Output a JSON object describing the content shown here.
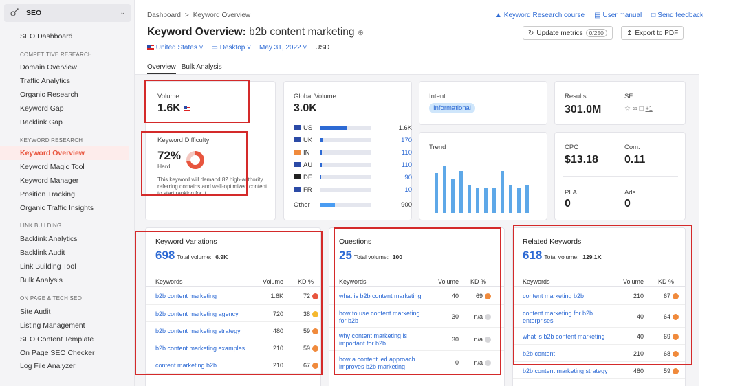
{
  "sidebar": {
    "header_label": "SEO",
    "items": [
      {
        "label": "SEO Dashboard"
      },
      {
        "section": "COMPETITIVE RESEARCH"
      },
      {
        "label": "Domain Overview"
      },
      {
        "label": "Traffic Analytics"
      },
      {
        "label": "Organic Research"
      },
      {
        "label": "Keyword Gap"
      },
      {
        "label": "Backlink Gap"
      },
      {
        "section": "KEYWORD RESEARCH"
      },
      {
        "label": "Keyword Overview",
        "active": true
      },
      {
        "label": "Keyword Magic Tool"
      },
      {
        "label": "Keyword Manager"
      },
      {
        "label": "Position Tracking"
      },
      {
        "label": "Organic Traffic Insights"
      },
      {
        "section": "LINK BUILDING"
      },
      {
        "label": "Backlink Analytics"
      },
      {
        "label": "Backlink Audit"
      },
      {
        "label": "Link Building Tool"
      },
      {
        "label": "Bulk Analysis"
      },
      {
        "section": "ON PAGE & TECH SEO"
      },
      {
        "label": "Site Audit"
      },
      {
        "label": "Listing Management"
      },
      {
        "label": "SEO Content Template"
      },
      {
        "label": "On Page SEO Checker"
      },
      {
        "label": "Log File Analyzer"
      }
    ]
  },
  "header": {
    "breadcrumb_1": "Dashboard",
    "breadcrumb_sep": ">",
    "breadcrumb_2": "Keyword Overview",
    "link_course": "Keyword Research course",
    "link_manual": "User manual",
    "link_feedback": "Send feedback",
    "title_prefix": "Keyword Overview:",
    "title_keyword": "b2b content marketing",
    "update_label": "Update metrics",
    "update_count": "0/250",
    "export_label": "Export to PDF",
    "filter_country": "United States",
    "filter_device": "Desktop",
    "filter_date": "May 31, 2022",
    "filter_currency": "USD",
    "tab_overview": "Overview",
    "tab_bulk": "Bulk Analysis"
  },
  "metrics": {
    "volume_label": "Volume",
    "volume_value": "1.6K",
    "kd_label": "Keyword Difficulty",
    "kd_value": "72%",
    "kd_level": "Hard",
    "kd_percent": 72,
    "kd_desc": "This keyword will demand 82 high-authority referring domains and well-optimized content to start ranking for it.",
    "global_label": "Global Volume",
    "global_value": "3.0K",
    "global_rows": [
      {
        "cc": "US",
        "value": "1.6K",
        "fraction": 0.53
      },
      {
        "cc": "UK",
        "value": "170",
        "fraction": 0.06
      },
      {
        "cc": "IN",
        "value": "110",
        "fraction": 0.04
      },
      {
        "cc": "AU",
        "value": "110",
        "fraction": 0.04
      },
      {
        "cc": "DE",
        "value": "90",
        "fraction": 0.03
      },
      {
        "cc": "FR",
        "value": "10",
        "fraction": 0.01
      }
    ],
    "global_other_label": "Other",
    "global_other_value": "900",
    "global_other_fraction": 0.3,
    "intent_label": "Intent",
    "intent_value": "Informational",
    "trend_label": "Trend",
    "trend_values": [
      0.8,
      0.95,
      0.7,
      0.85,
      0.55,
      0.5,
      0.52,
      0.5,
      0.85,
      0.55,
      0.5,
      0.55
    ],
    "results_label": "Results",
    "results_value": "301.0M",
    "sf_label": "SF",
    "sf_more": "+1",
    "cpc_label": "CPC",
    "cpc_value": "$13.18",
    "com_label": "Com.",
    "com_value": "0.11",
    "pla_label": "PLA",
    "pla_value": "0",
    "ads_label": "Ads",
    "ads_value": "0"
  },
  "colors": {
    "accent_blue": "#2d6ad4",
    "kd_red": "#e8553e",
    "kd_orange": "#f08a3c",
    "kd_yellow": "#f5b82e",
    "kd_gray": "#d5d5d8",
    "highlight_red": "#d42a2a"
  },
  "tables": {
    "col_keywords": "Keywords",
    "col_volume": "Volume",
    "col_kd": "KD %",
    "variations": {
      "title": "Keyword Variations",
      "count": "698",
      "total_label": "Total volume:",
      "total_value": "6.9K",
      "rows": [
        {
          "kw": "b2b content marketing",
          "vol": "1.6K",
          "kd": "72",
          "dot": "red"
        },
        {
          "kw": "b2b content marketing agency",
          "vol": "720",
          "kd": "38",
          "dot": "yellow"
        },
        {
          "kw": "b2b content marketing strategy",
          "vol": "480",
          "kd": "59",
          "dot": "orange"
        },
        {
          "kw": "b2b content marketing examples",
          "vol": "210",
          "kd": "59",
          "dot": "orange"
        },
        {
          "kw": "content marketing b2b",
          "vol": "210",
          "kd": "67",
          "dot": "orange"
        }
      ]
    },
    "questions": {
      "title": "Questions",
      "count": "25",
      "total_label": "Total volume:",
      "total_value": "100",
      "rows": [
        {
          "kw": "what is b2b content marketing",
          "vol": "40",
          "kd": "69",
          "dot": "orange"
        },
        {
          "kw": "how to use content marketing for b2b",
          "vol": "30",
          "kd": "n/a",
          "dot": "gray"
        },
        {
          "kw": "why content marketing is important for b2b",
          "vol": "30",
          "kd": "n/a",
          "dot": "gray"
        },
        {
          "kw": "how a content led approach improves b2b marketing",
          "vol": "0",
          "kd": "n/a",
          "dot": "gray"
        }
      ]
    },
    "related": {
      "title": "Related Keywords",
      "count": "618",
      "total_label": "Total volume:",
      "total_value": "129.1K",
      "rows": [
        {
          "kw": "content marketing b2b",
          "vol": "210",
          "kd": "67",
          "dot": "orange"
        },
        {
          "kw": "content marketing for b2b enterprises",
          "vol": "40",
          "kd": "64",
          "dot": "orange"
        },
        {
          "kw": "what is b2b content marketing",
          "vol": "40",
          "kd": "69",
          "dot": "orange"
        },
        {
          "kw": "b2b content",
          "vol": "210",
          "kd": "68",
          "dot": "orange"
        },
        {
          "kw": "b2b content marketing strategy",
          "vol": "480",
          "kd": "59",
          "dot": "orange"
        }
      ]
    }
  }
}
